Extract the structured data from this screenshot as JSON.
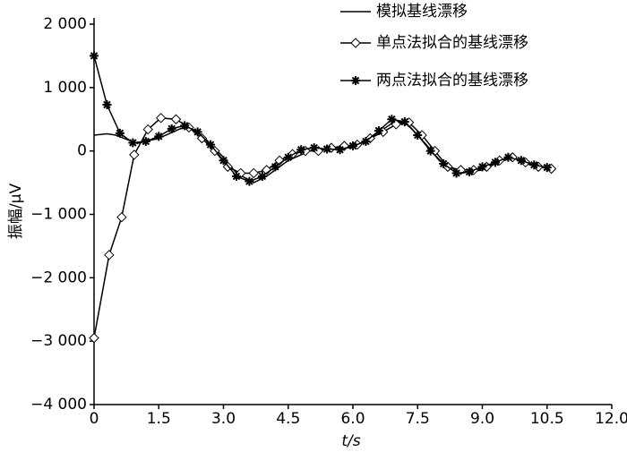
{
  "chart_data": {
    "type": "line",
    "xlabel": "t/s",
    "ylabel": "振幅/μV",
    "xlim": [
      0,
      12
    ],
    "ylim": [
      -4000,
      2000
    ],
    "xticks": [
      0,
      1.5,
      {
        "value": 3,
        "label": "3.0"
      },
      4.5,
      {
        "value": 6,
        "label": "6.0"
      },
      7.5,
      {
        "value": 9,
        "label": "9.0"
      },
      10.5,
      {
        "value": 12,
        "label": "12.0"
      }
    ],
    "yticks": [
      {
        "value": 2000,
        "label": "2 000"
      },
      {
        "value": 1000,
        "label": "1 000"
      },
      0,
      {
        "value": -1000,
        "label": "−1 000"
      },
      {
        "value": -2000,
        "label": "−2 000"
      },
      {
        "value": -3000,
        "label": "−3 000"
      },
      {
        "value": -4000,
        "label": "−4 000"
      }
    ],
    "legend": "top-right",
    "series": [
      {
        "name": "模拟基线漂移",
        "color": "#000000",
        "marker": "none",
        "x": [
          0,
          0.3,
          0.5,
          1.0,
          1.5,
          2.0,
          2.2,
          2.5,
          3.0,
          3.3,
          3.7,
          4.0,
          4.5,
          5.0,
          5.5,
          6.0,
          6.5,
          7.0,
          7.3,
          7.7,
          8.0,
          8.5,
          9.0,
          9.3,
          9.7,
          10.0,
          10.3,
          10.6
        ],
        "values": [
          250,
          270,
          250,
          120,
          200,
          350,
          380,
          250,
          -100,
          -350,
          -500,
          -400,
          -150,
          0,
          50,
          50,
          250,
          480,
          400,
          100,
          -150,
          -350,
          -300,
          -200,
          -100,
          -200,
          -250,
          -250
        ]
      },
      {
        "name": "单点法拟合的基线漂移",
        "color": "#000000",
        "marker": "diamond",
        "x": [
          0,
          0.35,
          0.64,
          0.93,
          1.25,
          1.55,
          1.9,
          2.2,
          2.5,
          2.8,
          3.1,
          3.4,
          3.7,
          4.0,
          4.3,
          4.6,
          4.9,
          5.2,
          5.5,
          5.8,
          6.1,
          6.4,
          6.7,
          7.0,
          7.3,
          7.6,
          7.9,
          8.2,
          8.5,
          8.8,
          9.1,
          9.4,
          9.7,
          10.0,
          10.3,
          10.6
        ],
        "values": [
          -2950,
          -1640,
          -1045,
          -60,
          340,
          520,
          500,
          370,
          200,
          0,
          -250,
          -350,
          -350,
          -300,
          -150,
          -50,
          0,
          0,
          50,
          80,
          100,
          200,
          300,
          420,
          450,
          250,
          0,
          -250,
          -300,
          -300,
          -250,
          -150,
          -100,
          -180,
          -250,
          -280
        ]
      },
      {
        "name": "两点法拟合的基线漂移",
        "color": "#000000",
        "marker": "star",
        "x": [
          0,
          0.3,
          0.6,
          0.9,
          1.2,
          1.5,
          1.8,
          2.1,
          2.4,
          2.7,
          3.0,
          3.3,
          3.6,
          3.9,
          4.2,
          4.5,
          4.8,
          5.1,
          5.4,
          5.7,
          6.0,
          6.3,
          6.6,
          6.9,
          7.2,
          7.5,
          7.8,
          8.1,
          8.4,
          8.7,
          9.0,
          9.3,
          9.6,
          9.9,
          10.2,
          10.5
        ],
        "values": [
          1500,
          730,
          280,
          130,
          150,
          230,
          350,
          400,
          300,
          100,
          -150,
          -400,
          -480,
          -400,
          -250,
          -100,
          20,
          50,
          30,
          20,
          80,
          150,
          320,
          500,
          460,
          250,
          0,
          -200,
          -350,
          -330,
          -250,
          -180,
          -100,
          -150,
          -220,
          -260
        ]
      }
    ]
  }
}
